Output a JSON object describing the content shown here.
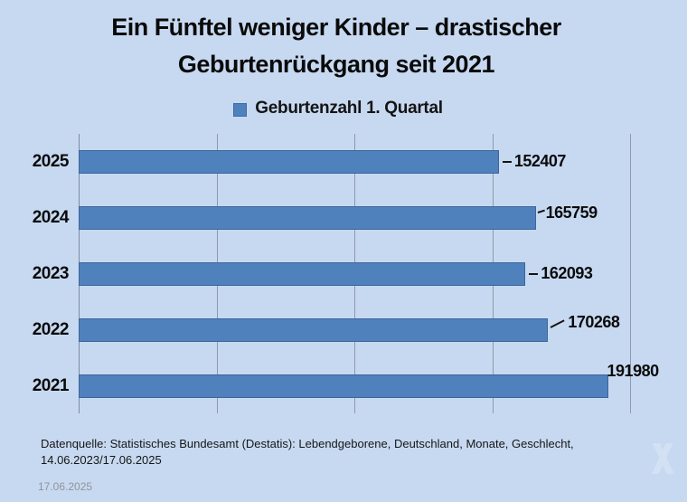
{
  "title": {
    "line1": "Ein Fünftel weniger Kinder – drastischer",
    "line2": "Geburtenrückgang seit 2021"
  },
  "legend": {
    "label": "Geburtenzahl 1. Quartal"
  },
  "chart_data": {
    "type": "bar",
    "orientation": "horizontal",
    "title": "Ein Fünftel weniger Kinder – drastischer Geburtenrückgang seit 2021",
    "series_name": "Geburtenzahl 1. Quartal",
    "categories": [
      "2025",
      "2024",
      "2023",
      "2022",
      "2021"
    ],
    "values": [
      152407,
      165759,
      162093,
      170268,
      191980
    ],
    "data_labels": [
      "152407",
      "165759",
      "162093",
      "170268",
      "191980"
    ],
    "xlim": [
      0,
      200000
    ],
    "gridline_values": [
      0,
      50000,
      100000,
      150000,
      200000
    ],
    "grid": "vertical-only",
    "legend_position": "top-center",
    "bar_color": "#4f81bd"
  },
  "source": {
    "line1": "Datenquelle: Statistisches Bundesamt (Destatis): Lebendgeborene, Deutschland, Monate, Geschlecht,",
    "line2": "14.06.2023/17.06.2025"
  },
  "footer": {
    "date": "17.06.2025"
  },
  "colors": {
    "background": "#c7d9f1",
    "bar": "#4f81bd",
    "bar_border": "#3c6599",
    "gridline": "#8e99a9",
    "text": "#0a0a0a",
    "footer_date": "#8f949d"
  }
}
